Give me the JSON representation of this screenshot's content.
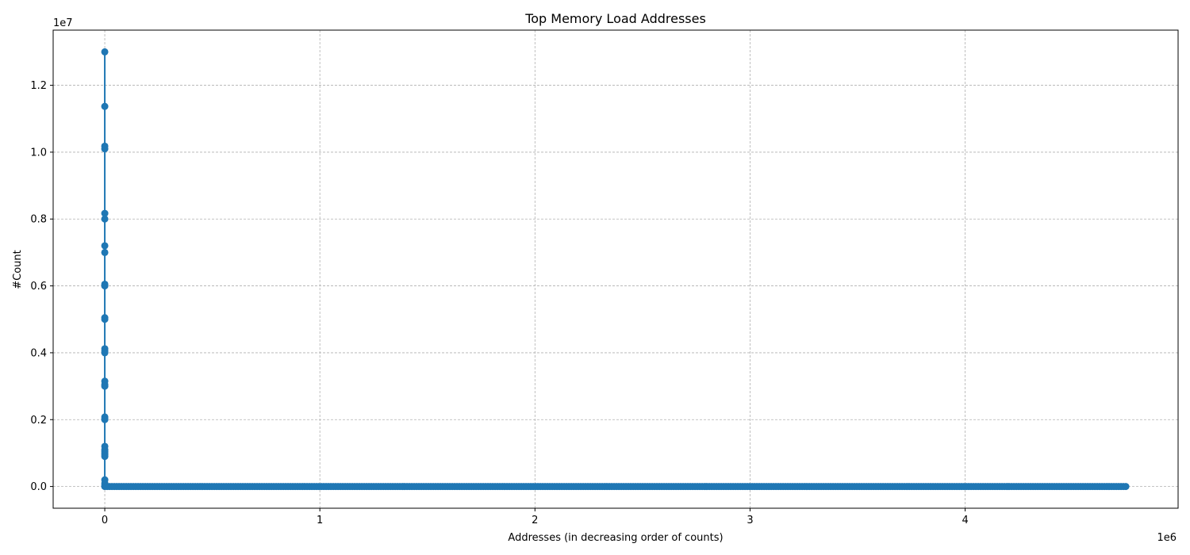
{
  "chart_data": {
    "type": "line",
    "title": "Top Memory Load Addresses",
    "xlabel": "Addresses (in decreasing order of counts)",
    "ylabel": "#Count",
    "x_offset_label": "1e6",
    "y_offset_label": "1e7",
    "xlim": [
      -240000,
      4990000
    ],
    "ylim": [
      -650000,
      13650000
    ],
    "x_ticks": [
      0,
      1000000,
      2000000,
      3000000,
      4000000
    ],
    "x_tick_labels": [
      "0",
      "1",
      "2",
      "3",
      "4"
    ],
    "y_ticks": [
      0,
      2000000,
      4000000,
      6000000,
      8000000,
      10000000,
      12000000
    ],
    "y_tick_labels": [
      "0.0",
      "0.2",
      "0.4",
      "0.6",
      "0.8",
      "1.0",
      "1.2"
    ],
    "grid": true,
    "marker": "circle",
    "series": [
      {
        "color": "#1f77b4",
        "peak_x_end": 200,
        "tail_x_end": 4750000,
        "tail_value": 0,
        "peak_values": [
          13000000,
          11370000,
          10180000,
          10100000,
          8170000,
          8000000,
          7200000,
          7000000,
          6050000,
          6000000,
          5050000,
          5000000,
          4120000,
          4050000,
          4000000,
          3150000,
          3050000,
          3000000,
          2080000,
          2030000,
          2000000,
          1200000,
          1100000,
          1050000,
          1000000,
          950000,
          900000,
          200000,
          100000,
          50000
        ]
      }
    ]
  }
}
